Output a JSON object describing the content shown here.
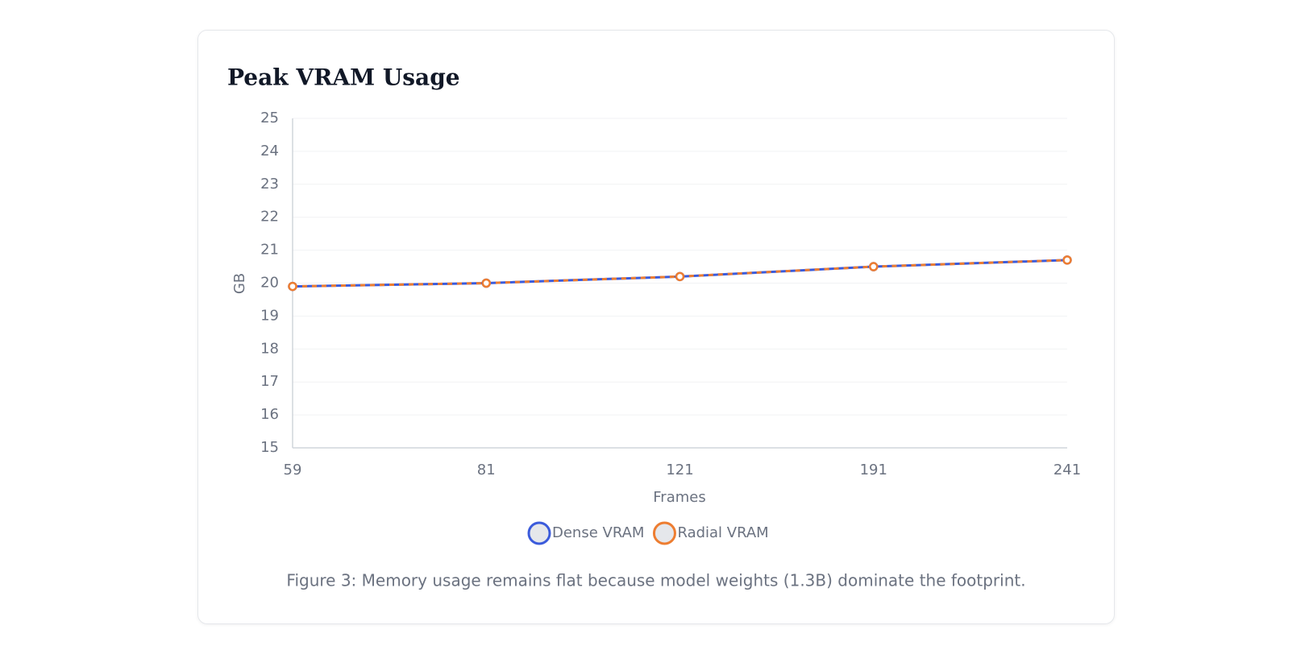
{
  "chart_data": {
    "type": "line",
    "title": "Peak VRAM Usage",
    "x_label": "Frames",
    "y_label": "GB",
    "categories": [
      "59",
      "81",
      "121",
      "191",
      "241"
    ],
    "series": [
      {
        "name": "Dense VRAM",
        "color": "#3b5bdb",
        "values": [
          19.9,
          20.0,
          20.2,
          20.5,
          20.7
        ]
      },
      {
        "name": "Radial VRAM",
        "color": "#ed7d31",
        "values": [
          19.9,
          20.0,
          20.2,
          20.5,
          20.7
        ]
      }
    ],
    "ylim": [
      15,
      25
    ],
    "yticks": [
      15,
      16,
      17,
      18,
      19,
      20,
      21,
      22,
      23,
      24,
      25
    ],
    "grid": true,
    "legend": "bottom"
  },
  "caption": "Figure 3: Memory usage remains flat because model weights (1.3B) dominate the footprint."
}
